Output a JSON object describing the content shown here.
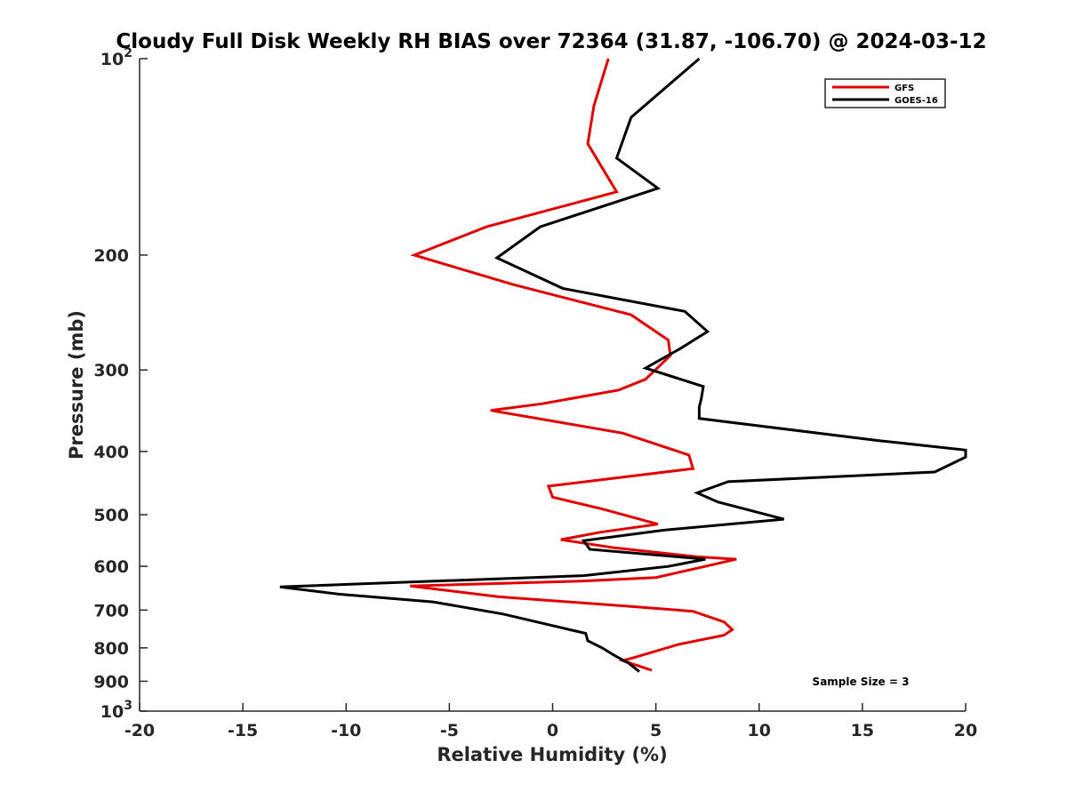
{
  "chart_data": {
    "type": "line",
    "title": "Cloudy Full Disk Weekly RH BIAS over 72364 (31.87, -106.70) @ 2024-03-12",
    "xlabel": "Relative Humidity (%)",
    "ylabel": "Pressure (mb)",
    "xlim": [
      -20,
      20
    ],
    "ylim": [
      1000,
      100
    ],
    "yscale": "log",
    "x_ticks": [
      "-20",
      "-15",
      "-10",
      "-5",
      "0",
      "5",
      "10",
      "15",
      "20"
    ],
    "y_ticks": [
      {
        "value": 100,
        "label": "10",
        "sup": "2"
      },
      {
        "value": 200,
        "label": "200"
      },
      {
        "value": 300,
        "label": "300"
      },
      {
        "value": 400,
        "label": "400"
      },
      {
        "value": 500,
        "label": "500"
      },
      {
        "value": 600,
        "label": "600"
      },
      {
        "value": 700,
        "label": "700"
      },
      {
        "value": 800,
        "label": "800"
      },
      {
        "value": 900,
        "label": "900"
      },
      {
        "value": 1000,
        "label": "10",
        "sup": "3"
      }
    ],
    "legend_position": "top-right",
    "annotation": "Sample Size = 3",
    "series": [
      {
        "name": "GFS",
        "color": "#e00000",
        "points": [
          [
            4.8,
            866
          ],
          [
            3.4,
            837
          ],
          [
            4.1,
            825
          ],
          [
            6.1,
            790
          ],
          [
            8.3,
            765
          ],
          [
            8.7,
            750
          ],
          [
            8.3,
            730
          ],
          [
            6.8,
            703
          ],
          [
            3.5,
            690
          ],
          [
            -2.6,
            668
          ],
          [
            -6.9,
            643
          ],
          [
            1.4,
            632
          ],
          [
            5.0,
            624
          ],
          [
            7.2,
            602
          ],
          [
            8.9,
            585
          ],
          [
            7.0,
            580
          ],
          [
            3.0,
            562
          ],
          [
            0.4,
            546
          ],
          [
            2.3,
            532
          ],
          [
            5.1,
            517
          ],
          [
            2.4,
            490
          ],
          [
            0.0,
            470
          ],
          [
            -0.2,
            452
          ],
          [
            6.8,
            425
          ],
          [
            6.6,
            405
          ],
          [
            3.4,
            375
          ],
          [
            -3.0,
            346
          ],
          [
            -0.5,
            338
          ],
          [
            3.2,
            322
          ],
          [
            4.5,
            310
          ],
          [
            5.7,
            285
          ],
          [
            5.6,
            270
          ],
          [
            3.8,
            247
          ],
          [
            -1.9,
            222
          ],
          [
            -6.7,
            200
          ],
          [
            -3.2,
            181
          ],
          [
            3.1,
            160
          ],
          [
            1.7,
            135
          ],
          [
            2.0,
            118
          ],
          [
            2.7,
            100
          ]
        ]
      },
      {
        "name": "GOES-16",
        "color": "#000000",
        "points": [
          [
            4.2,
            870
          ],
          [
            3.7,
            845
          ],
          [
            3.0,
            822
          ],
          [
            2.4,
            800
          ],
          [
            1.7,
            780
          ],
          [
            1.6,
            760
          ],
          [
            0.5,
            746
          ],
          [
            -2.4,
            710
          ],
          [
            -5.8,
            680
          ],
          [
            -10.3,
            662
          ],
          [
            -13.2,
            645
          ],
          [
            1.5,
            620
          ],
          [
            5.6,
            600
          ],
          [
            7.4,
            585
          ],
          [
            1.8,
            565
          ],
          [
            1.5,
            548
          ],
          [
            5.4,
            528
          ],
          [
            11.2,
            508
          ],
          [
            8.0,
            478
          ],
          [
            7.0,
            463
          ],
          [
            8.5,
            445
          ],
          [
            18.5,
            430
          ],
          [
            20.0,
            408
          ],
          [
            20.0,
            398
          ],
          [
            15.8,
            385
          ],
          [
            7.1,
            356
          ],
          [
            7.1,
            342
          ],
          [
            7.2,
            332
          ],
          [
            7.3,
            318
          ],
          [
            4.5,
            298
          ],
          [
            6.2,
            278
          ],
          [
            7.5,
            262
          ],
          [
            6.4,
            244
          ],
          [
            0.5,
            225
          ],
          [
            -2.7,
            202
          ],
          [
            -0.6,
            181
          ],
          [
            5.1,
            158
          ],
          [
            3.1,
            142
          ],
          [
            3.8,
            123
          ],
          [
            7.1,
            100
          ]
        ]
      }
    ]
  }
}
